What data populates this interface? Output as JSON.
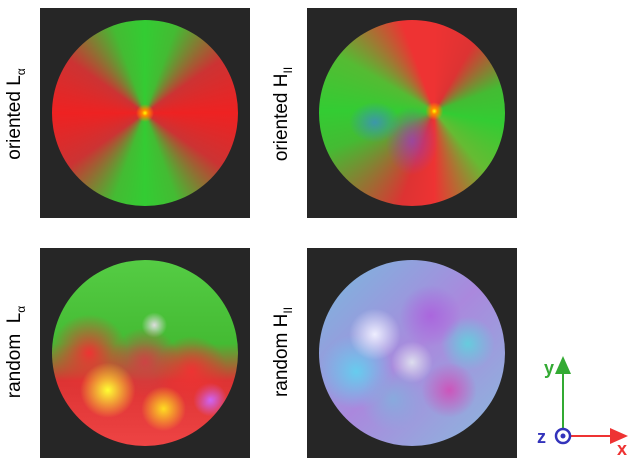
{
  "panels": [
    {
      "label": "oriented L",
      "label_sub": "α"
    },
    {
      "label": "oriented H",
      "label_sub": "II"
    },
    {
      "label": "random  L",
      "label_sub": "α"
    },
    {
      "label": "random H",
      "label_sub": "II"
    }
  ],
  "axes": {
    "y": "y",
    "z": "z",
    "x": "x"
  }
}
